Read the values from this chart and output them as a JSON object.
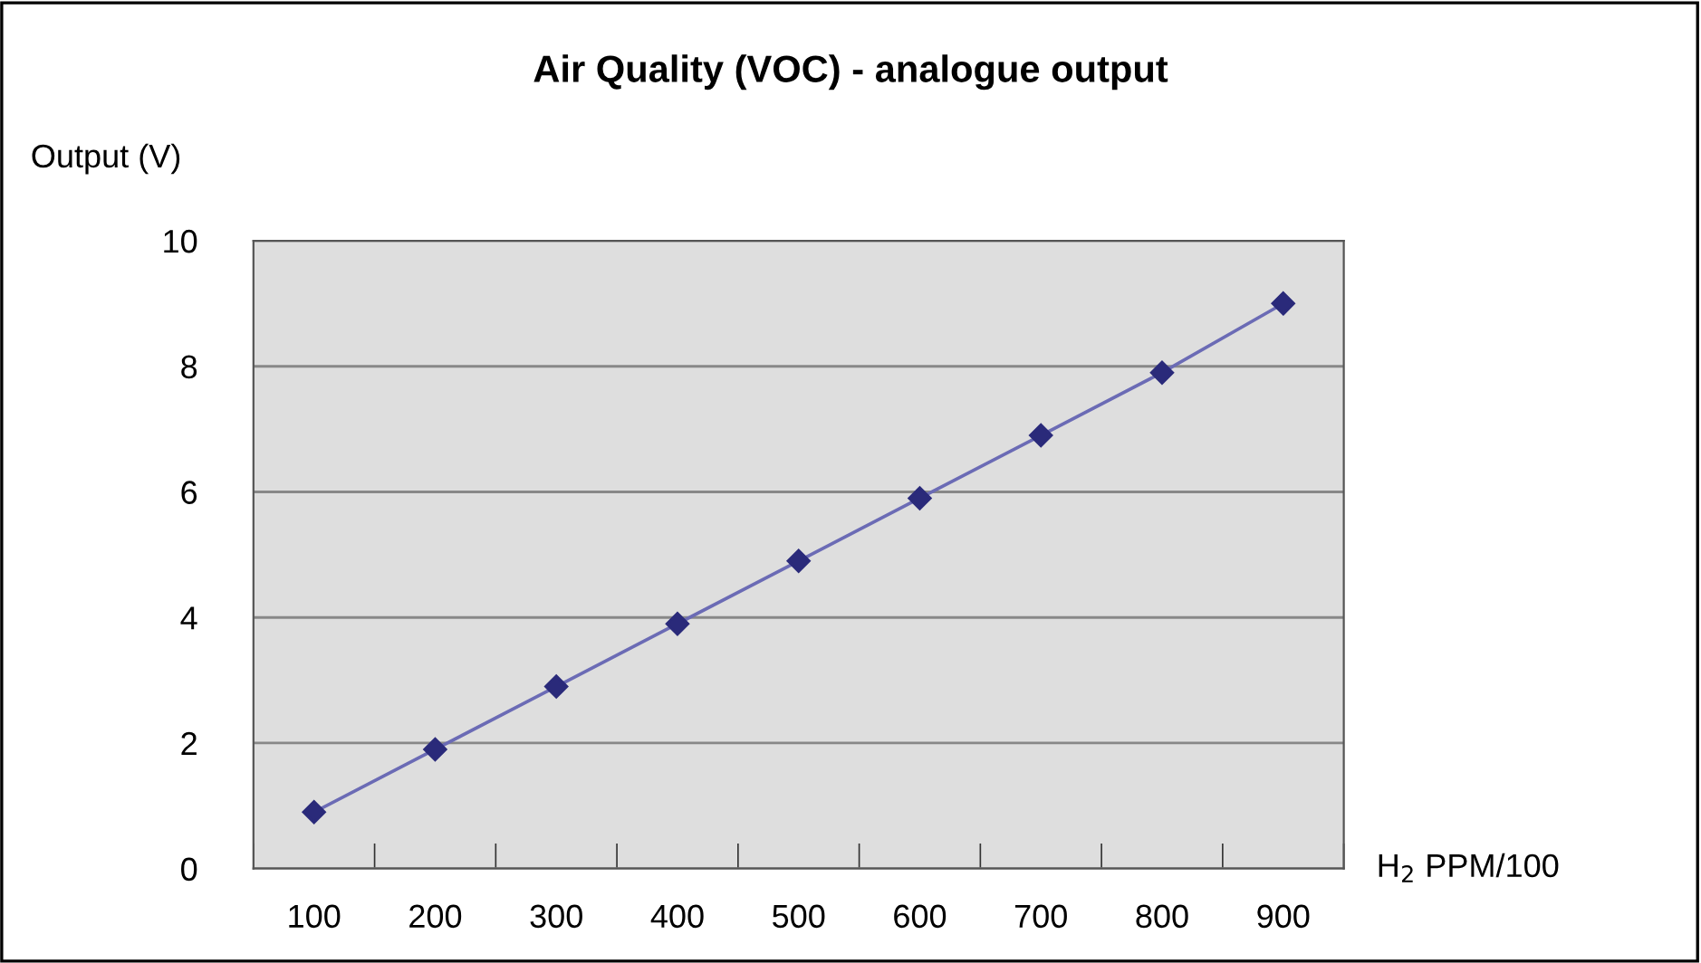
{
  "chart_data": {
    "type": "line",
    "title": "Air Quality (VOC) - analogue output",
    "xlabel": "H$_{2}$ PPM/100",
    "ylabel": "Output (V)",
    "categories": [
      "100",
      "200",
      "300",
      "400",
      "500",
      "600",
      "700",
      "800",
      "900"
    ],
    "series": [
      {
        "color": "#2a2a7a",
        "values": [
          0.9,
          1.9,
          2.9,
          3.9,
          4.9,
          5.9,
          6.9,
          7.9,
          9.0
        ]
      }
    ],
    "ylim": [
      0,
      10
    ],
    "yticks": [
      0,
      2,
      4,
      6,
      8,
      10
    ],
    "grid": "y",
    "marker": "diamond",
    "line_style": "solid"
  }
}
